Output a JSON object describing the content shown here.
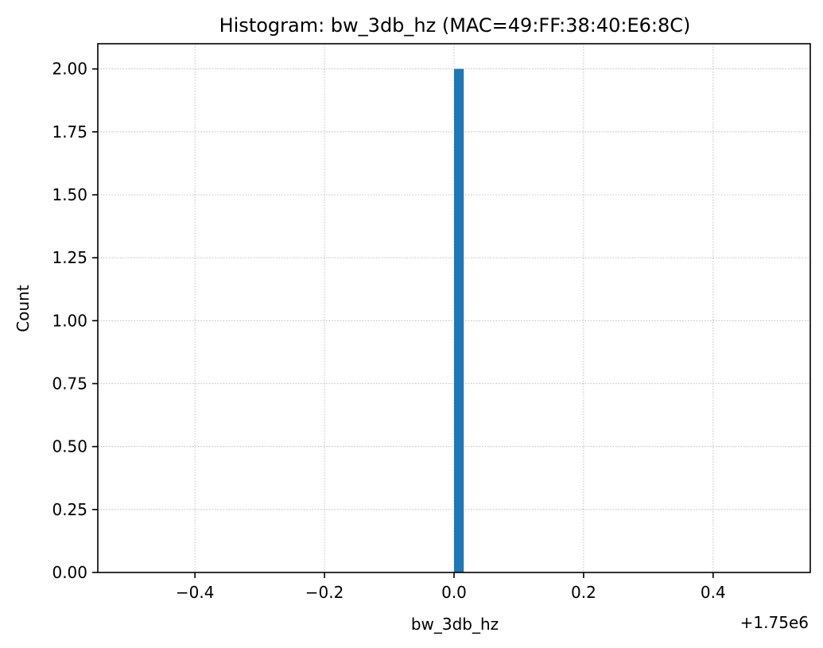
{
  "chart_data": {
    "type": "bar",
    "title": "Histogram: bw_3db_hz (MAC=49:FF:38:40:E6:8C)",
    "xlabel": "bw_3db_hz",
    "ylabel": "Count",
    "x_offset_text": "+1.75e6",
    "xlim": [
      -0.55,
      0.55
    ],
    "ylim": [
      0,
      2.1
    ],
    "x_ticks": [
      -0.4,
      -0.2,
      0.0,
      0.2,
      0.4
    ],
    "x_tick_labels": [
      "−0.4",
      "−0.2",
      "0.0",
      "0.2",
      "0.4"
    ],
    "y_ticks": [
      0,
      0.25,
      0.5,
      0.75,
      1.0,
      1.25,
      1.5,
      1.75,
      2.0
    ],
    "y_tick_labels": [
      "0.00",
      "0.25",
      "0.50",
      "0.75",
      "1.00",
      "1.25",
      "1.50",
      "1.75",
      "2.00"
    ],
    "grid": true,
    "bins": [
      {
        "x_start": 0.0,
        "x_end": 0.015,
        "count": 2
      }
    ],
    "bar_color": "#1f77b4"
  }
}
